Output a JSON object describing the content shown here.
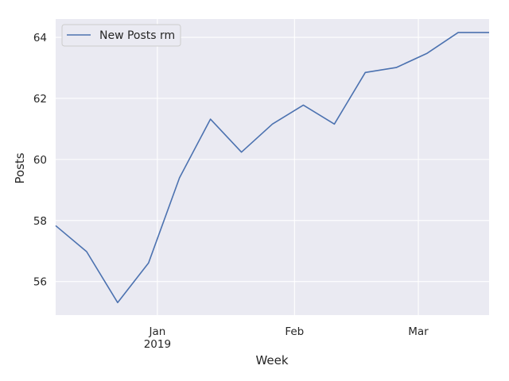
{
  "chart_data": {
    "type": "line",
    "title": "",
    "xlabel": "Week",
    "ylabel": "Posts",
    "grid": true,
    "legend_position": "top-left",
    "x_tick_labels": [
      {
        "date": "2019-01-01",
        "label": "Jan",
        "sublabel": "2019"
      },
      {
        "date": "2019-02-01",
        "label": "Feb",
        "sublabel": ""
      },
      {
        "date": "2019-03-01",
        "label": "Mar",
        "sublabel": ""
      }
    ],
    "y_ticks": [
      56,
      58,
      60,
      62,
      64
    ],
    "xlim": [
      "2018-12-09",
      "2019-03-17"
    ],
    "ylim": [
      54.9,
      64.6
    ],
    "series": [
      {
        "name": "New Posts rm",
        "color": "#4c72b0",
        "x": [
          "2018-12-09",
          "2018-12-16",
          "2018-12-23",
          "2018-12-30",
          "2019-01-06",
          "2019-01-13",
          "2019-01-20",
          "2019-01-27",
          "2019-02-03",
          "2019-02-10",
          "2019-02-17",
          "2019-02-24",
          "2019-03-03",
          "2019-03-10",
          "2019-03-17"
        ],
        "y": [
          57.83,
          56.98,
          55.31,
          56.61,
          59.4,
          61.32,
          60.24,
          61.16,
          61.78,
          61.16,
          62.85,
          63.01,
          63.48,
          64.16,
          64.16
        ]
      }
    ]
  },
  "style": {
    "plot_background": "#eaeaf2",
    "grid_color": "#ffffff",
    "text_color": "#262626"
  }
}
